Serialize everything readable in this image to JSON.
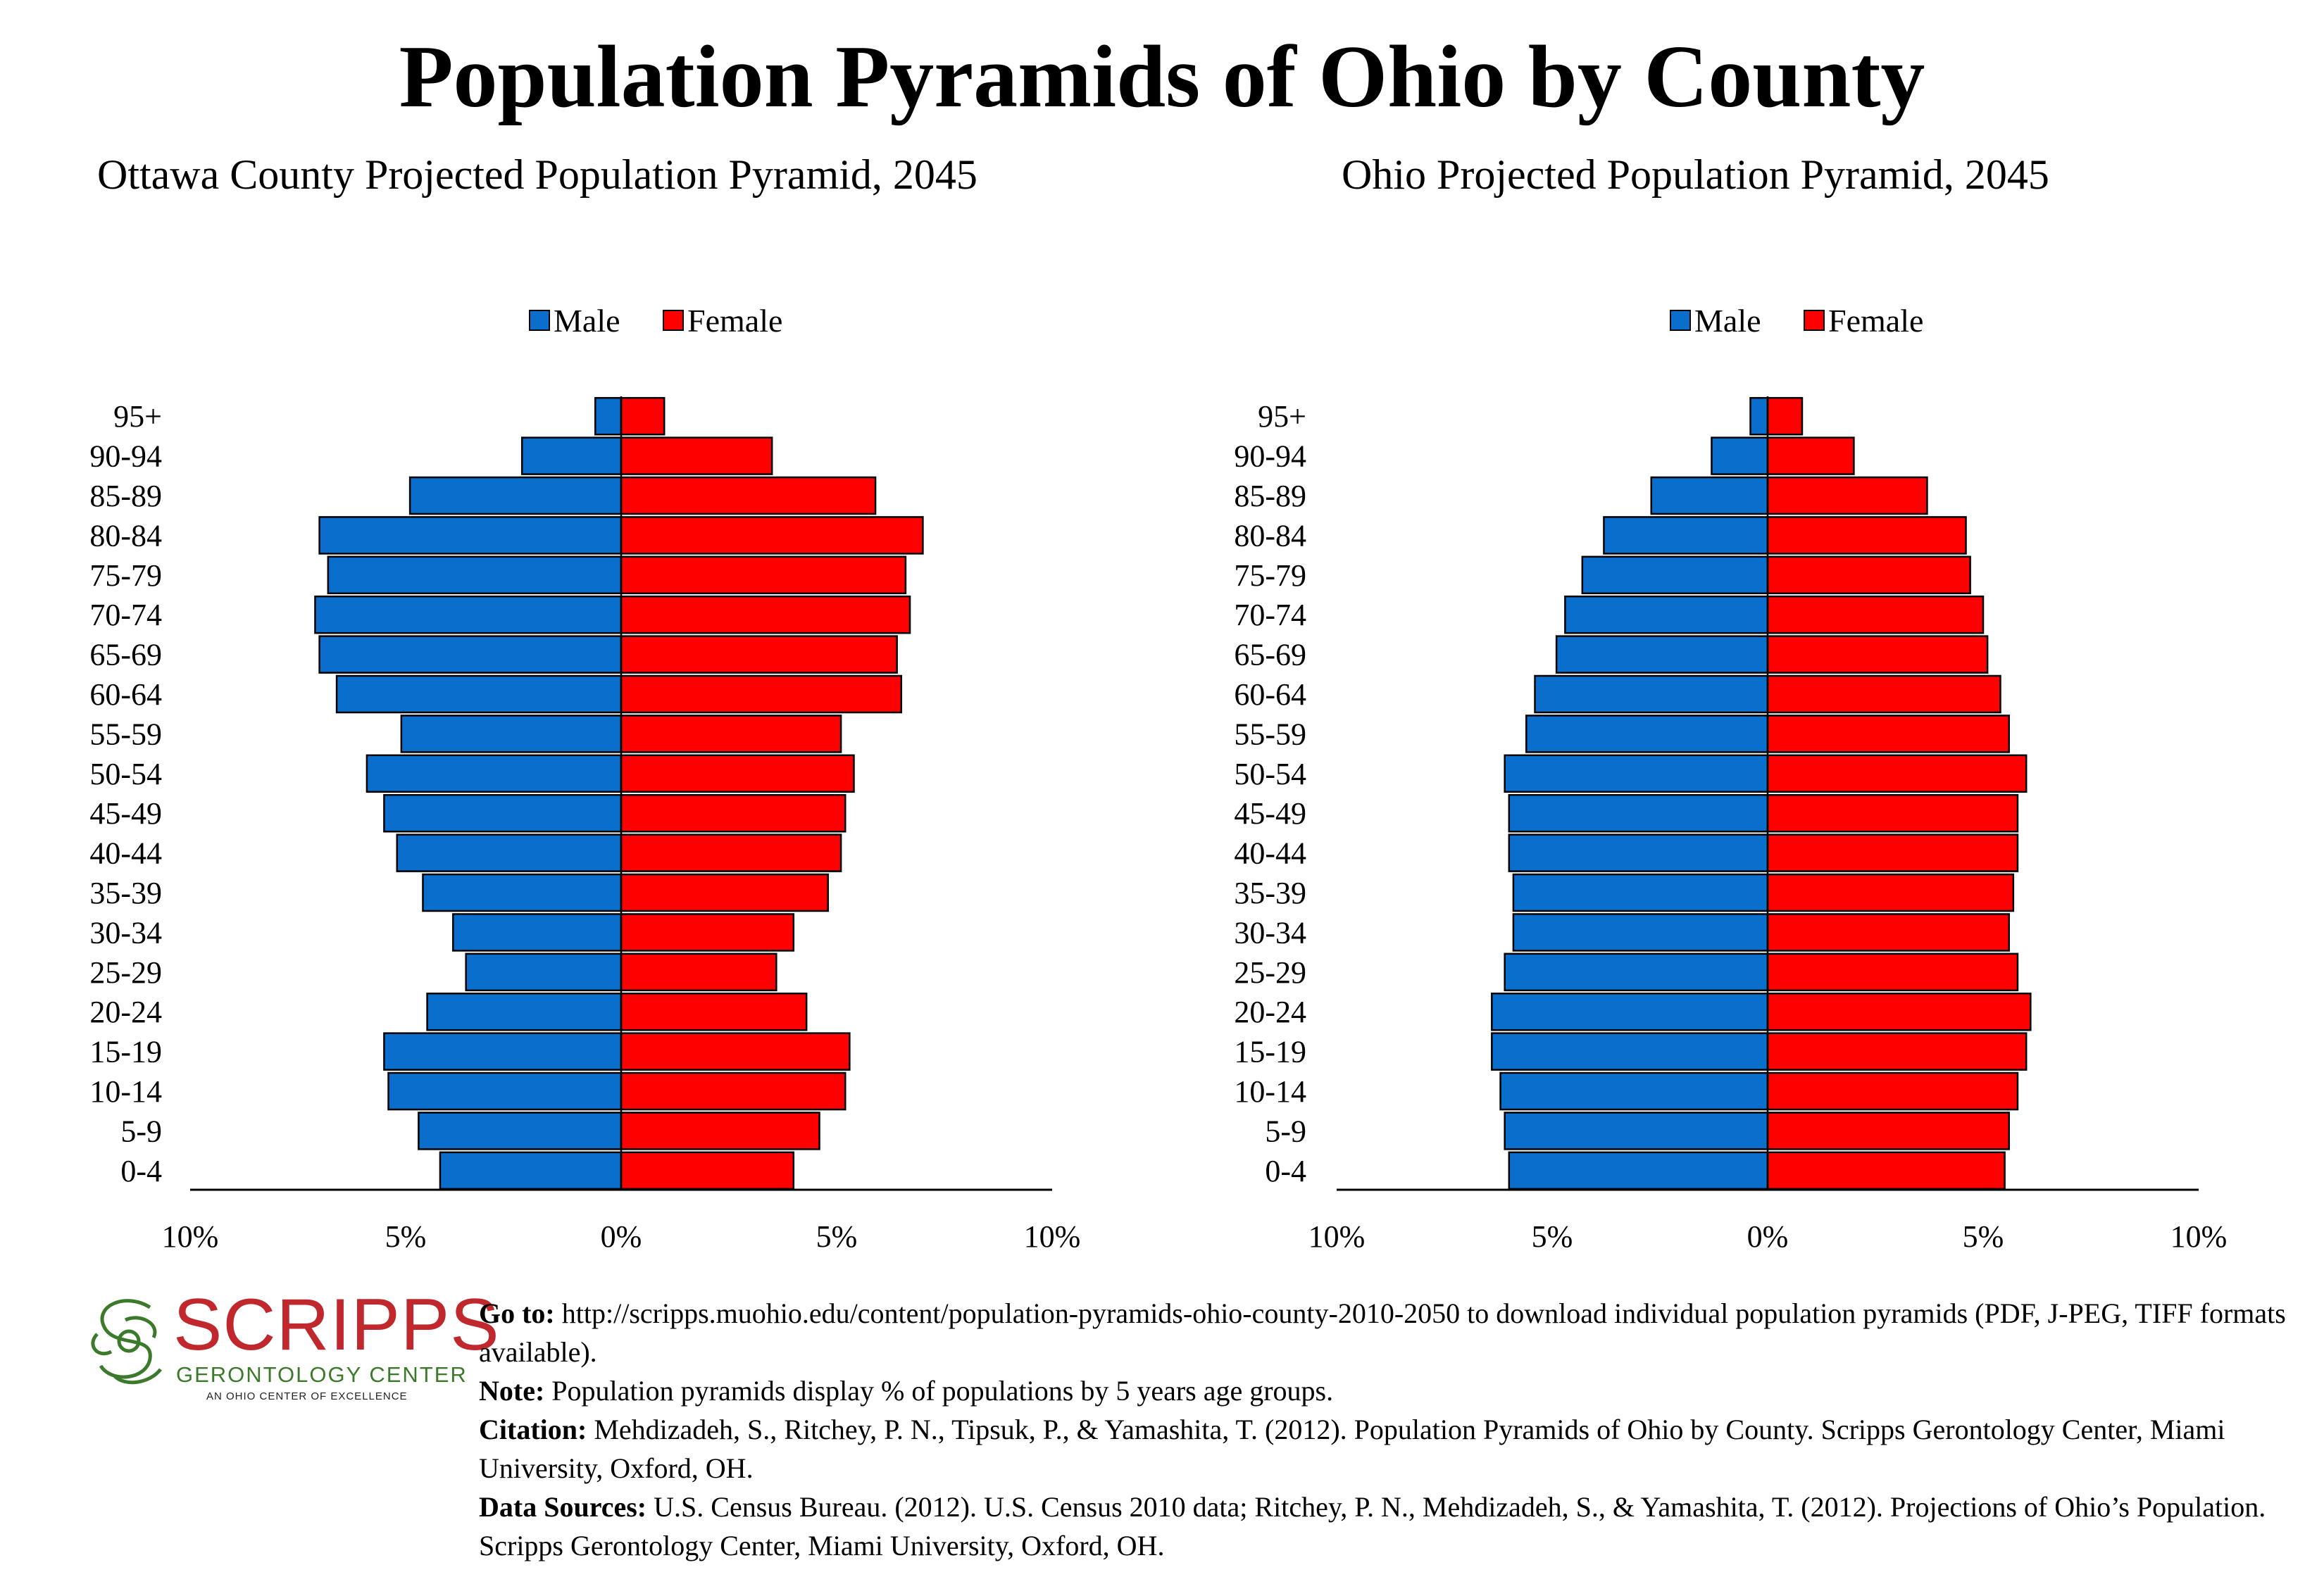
{
  "title": "Population Pyramids of Ohio by County",
  "colors": {
    "male": "#0a6ecc",
    "female": "#ff0000",
    "logo_red": "#c0282d",
    "logo_green": "#3b7a2a"
  },
  "chart_data": [
    {
      "type": "bar",
      "title": "Ottawa County Projected Population Pyramid, 2045",
      "orientation": "horizontal-pyramid",
      "categories": [
        "0-4",
        "5-9",
        "10-14",
        "15-19",
        "20-24",
        "25-29",
        "30-34",
        "35-39",
        "40-44",
        "45-49",
        "50-54",
        "55-59",
        "60-64",
        "65-69",
        "70-74",
        "75-79",
        "80-84",
        "85-89",
        "90-94",
        "95+"
      ],
      "series": [
        {
          "name": "Male",
          "values": [
            4.2,
            4.7,
            5.4,
            5.5,
            4.5,
            3.6,
            3.9,
            4.6,
            5.2,
            5.5,
            5.9,
            5.1,
            6.6,
            7.0,
            7.1,
            6.8,
            7.0,
            4.9,
            2.3,
            0.6
          ]
        },
        {
          "name": "Female",
          "values": [
            4.0,
            4.6,
            5.2,
            5.3,
            4.3,
            3.6,
            4.0,
            4.8,
            5.1,
            5.2,
            5.4,
            5.1,
            6.5,
            6.4,
            6.7,
            6.6,
            7.0,
            5.9,
            3.5,
            1.0
          ]
        }
      ],
      "xlim": [
        -10,
        10
      ],
      "xticks": [
        "10%",
        "5%",
        "0%",
        "5%",
        "10%"
      ],
      "legend": {
        "position": "top-center",
        "entries": [
          "Male",
          "Female"
        ]
      }
    },
    {
      "type": "bar",
      "title": "Ohio Projected Population Pyramid, 2045",
      "orientation": "horizontal-pyramid",
      "categories": [
        "0-4",
        "5-9",
        "10-14",
        "15-19",
        "20-24",
        "25-29",
        "30-34",
        "35-39",
        "40-44",
        "45-49",
        "50-54",
        "55-59",
        "60-64",
        "65-69",
        "70-74",
        "75-79",
        "80-84",
        "85-89",
        "90-94",
        "95+"
      ],
      "series": [
        {
          "name": "Male",
          "values": [
            6.0,
            6.1,
            6.2,
            6.4,
            6.4,
            6.1,
            5.9,
            5.9,
            6.0,
            6.0,
            6.1,
            5.6,
            5.4,
            4.9,
            4.7,
            4.3,
            3.8,
            2.7,
            1.3,
            0.4
          ]
        },
        {
          "name": "Female",
          "values": [
            5.5,
            5.6,
            5.8,
            6.0,
            6.1,
            5.8,
            5.6,
            5.7,
            5.8,
            5.8,
            6.0,
            5.6,
            5.4,
            5.1,
            5.0,
            4.7,
            4.6,
            3.7,
            2.0,
            0.8
          ]
        }
      ],
      "xlim": [
        -10,
        10
      ],
      "xticks": [
        "10%",
        "5%",
        "0%",
        "5%",
        "10%"
      ],
      "legend": {
        "position": "top-center",
        "entries": [
          "Male",
          "Female"
        ]
      }
    }
  ],
  "logo": {
    "name": "SCRIPPS",
    "subtitle": "GERONTOLOGY CENTER",
    "tagline": "AN OHIO CENTER OF EXCELLENCE"
  },
  "footer": {
    "goto_label": "Go to:",
    "goto_text": " http://scripps.muohio.edu/content/population-pyramids-ohio-county-2010-2050 to download individual population pyramids (PDF, J-PEG, TIFF formats available).",
    "note_label": "Note:",
    "note_text": " Population pyramids display % of populations by 5 years age groups.",
    "citation_label": "Citation:",
    "citation_text": " Mehdizadeh, S., Ritchey, P. N., Tipsuk, P., & Yamashita, T. (2012). Population Pyramids of Ohio by County. Scripps Gerontology Center, Miami University, Oxford, OH.",
    "sources_label": "Data Sources:",
    "sources_text": " U.S. Census Bureau. (2012). U.S. Census 2010 data; Ritchey, P. N., Mehdizadeh, S., & Yamashita, T. (2012). Projections of Ohio’s Population. Scripps Gerontology Center, Miami University, Oxford, OH."
  }
}
